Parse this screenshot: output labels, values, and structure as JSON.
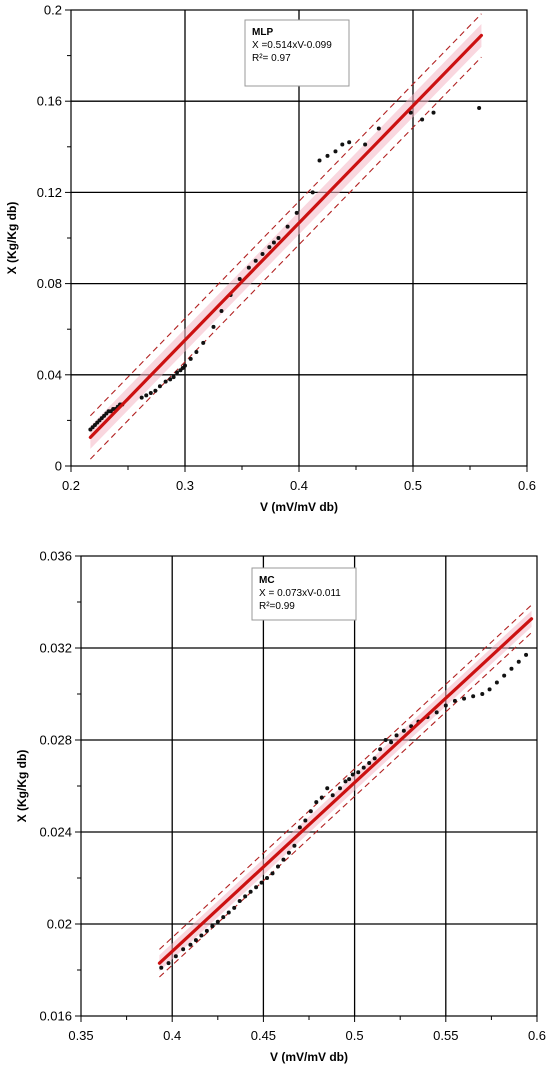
{
  "chart_data": [
    {
      "type": "scatter",
      "xlabel": "V (mV/mV db)",
      "ylabel": "X (Kg/Kg db)",
      "xlim": [
        0.2,
        0.6
      ],
      "ylim": [
        0,
        0.2
      ],
      "xticks": [
        "0.2",
        "0.3",
        "0.4",
        "0.5",
        "0.6"
      ],
      "yticks": [
        "0",
        "0.04",
        "0.08",
        "0.12",
        "0.16",
        "0.2"
      ],
      "grid": true,
      "legend": {
        "placement": "top-center",
        "heading": "MLP",
        "lines": [
          "X =0.514xV-0.099",
          "R²= 0.97"
        ]
      },
      "fit": {
        "slope": 0.514,
        "intercept": -0.099,
        "x_range": [
          0.217,
          0.56
        ],
        "color": "#cc1111",
        "band_color": "#b22222"
      },
      "points_color": "#111111",
      "series": [
        {
          "x": [
            0.217,
            0.219,
            0.221,
            0.223,
            0.225,
            0.227,
            0.229,
            0.231,
            0.233,
            0.235,
            0.237,
            0.239,
            0.241,
            0.243,
            0.245,
            0.262,
            0.266,
            0.27,
            0.274,
            0.278,
            0.283,
            0.287,
            0.29,
            0.293,
            0.296,
            0.298,
            0.3,
            0.305,
            0.31,
            0.316,
            0.325,
            0.332,
            0.34,
            0.348,
            0.356,
            0.362,
            0.368,
            0.374,
            0.378,
            0.382,
            0.39,
            0.398,
            0.412,
            0.418,
            0.425,
            0.432,
            0.438,
            0.444,
            0.458,
            0.47,
            0.498,
            0.508,
            0.518,
            0.558
          ],
          "y": [
            0.016,
            0.017,
            0.018,
            0.019,
            0.02,
            0.021,
            0.022,
            0.023,
            0.024,
            0.024,
            0.025,
            0.025,
            0.026,
            0.027,
            0.027,
            0.03,
            0.031,
            0.032,
            0.033,
            0.035,
            0.037,
            0.038,
            0.039,
            0.041,
            0.042,
            0.043,
            0.044,
            0.047,
            0.05,
            0.054,
            0.061,
            0.068,
            0.075,
            0.082,
            0.087,
            0.09,
            0.093,
            0.096,
            0.098,
            0.1,
            0.105,
            0.111,
            0.12,
            0.134,
            0.136,
            0.138,
            0.141,
            0.142,
            0.141,
            0.148,
            0.155,
            0.152,
            0.155,
            0.157
          ]
        }
      ]
    },
    {
      "type": "scatter",
      "xlabel": "V (mV/mV db)",
      "ylabel": "X (Kg/Kg db)",
      "xlim": [
        0.35,
        0.6
      ],
      "ylim": [
        0.016,
        0.036
      ],
      "xticks": [
        "0.35",
        "0.4",
        "0.45",
        "0.5",
        "0.55",
        "0.6"
      ],
      "yticks": [
        "0.016",
        "0.02",
        "0.024",
        "0.028",
        "0.032",
        "0.036"
      ],
      "grid": true,
      "legend": {
        "placement": "top-center",
        "heading": "MC",
        "lines": [
          "X = 0.073xV-0.011",
          "R²=0.99"
        ]
      },
      "fit": {
        "slope": 0.0734,
        "intercept": -0.01055,
        "x_range": [
          0.393,
          0.597
        ],
        "color": "#cc1111",
        "band_color": "#b22222"
      },
      "points_color": "#111111",
      "series": [
        {
          "x": [
            0.394,
            0.398,
            0.402,
            0.406,
            0.41,
            0.413,
            0.416,
            0.419,
            0.422,
            0.425,
            0.428,
            0.431,
            0.434,
            0.437,
            0.44,
            0.443,
            0.446,
            0.449,
            0.452,
            0.455,
            0.458,
            0.461,
            0.464,
            0.467,
            0.47,
            0.473,
            0.476,
            0.479,
            0.482,
            0.485,
            0.488,
            0.492,
            0.495,
            0.497,
            0.499,
            0.502,
            0.505,
            0.508,
            0.511,
            0.514,
            0.517,
            0.52,
            0.523,
            0.527,
            0.531,
            0.535,
            0.54,
            0.545,
            0.55,
            0.555,
            0.56,
            0.565,
            0.57,
            0.574,
            0.578,
            0.582,
            0.586,
            0.59,
            0.594
          ],
          "y": [
            0.0181,
            0.0183,
            0.0186,
            0.0189,
            0.0191,
            0.0193,
            0.0195,
            0.0197,
            0.0199,
            0.0201,
            0.0203,
            0.0205,
            0.0207,
            0.021,
            0.0212,
            0.0214,
            0.0216,
            0.0218,
            0.022,
            0.0222,
            0.0225,
            0.0228,
            0.0231,
            0.0234,
            0.0242,
            0.0245,
            0.0249,
            0.0253,
            0.0255,
            0.0259,
            0.0256,
            0.0259,
            0.0262,
            0.0263,
            0.0265,
            0.0266,
            0.0268,
            0.027,
            0.0272,
            0.0276,
            0.028,
            0.0279,
            0.0282,
            0.0284,
            0.0286,
            0.0288,
            0.029,
            0.0292,
            0.0295,
            0.0297,
            0.0298,
            0.0299,
            0.03,
            0.0302,
            0.0305,
            0.0308,
            0.0311,
            0.0314,
            0.0317
          ]
        }
      ]
    }
  ]
}
